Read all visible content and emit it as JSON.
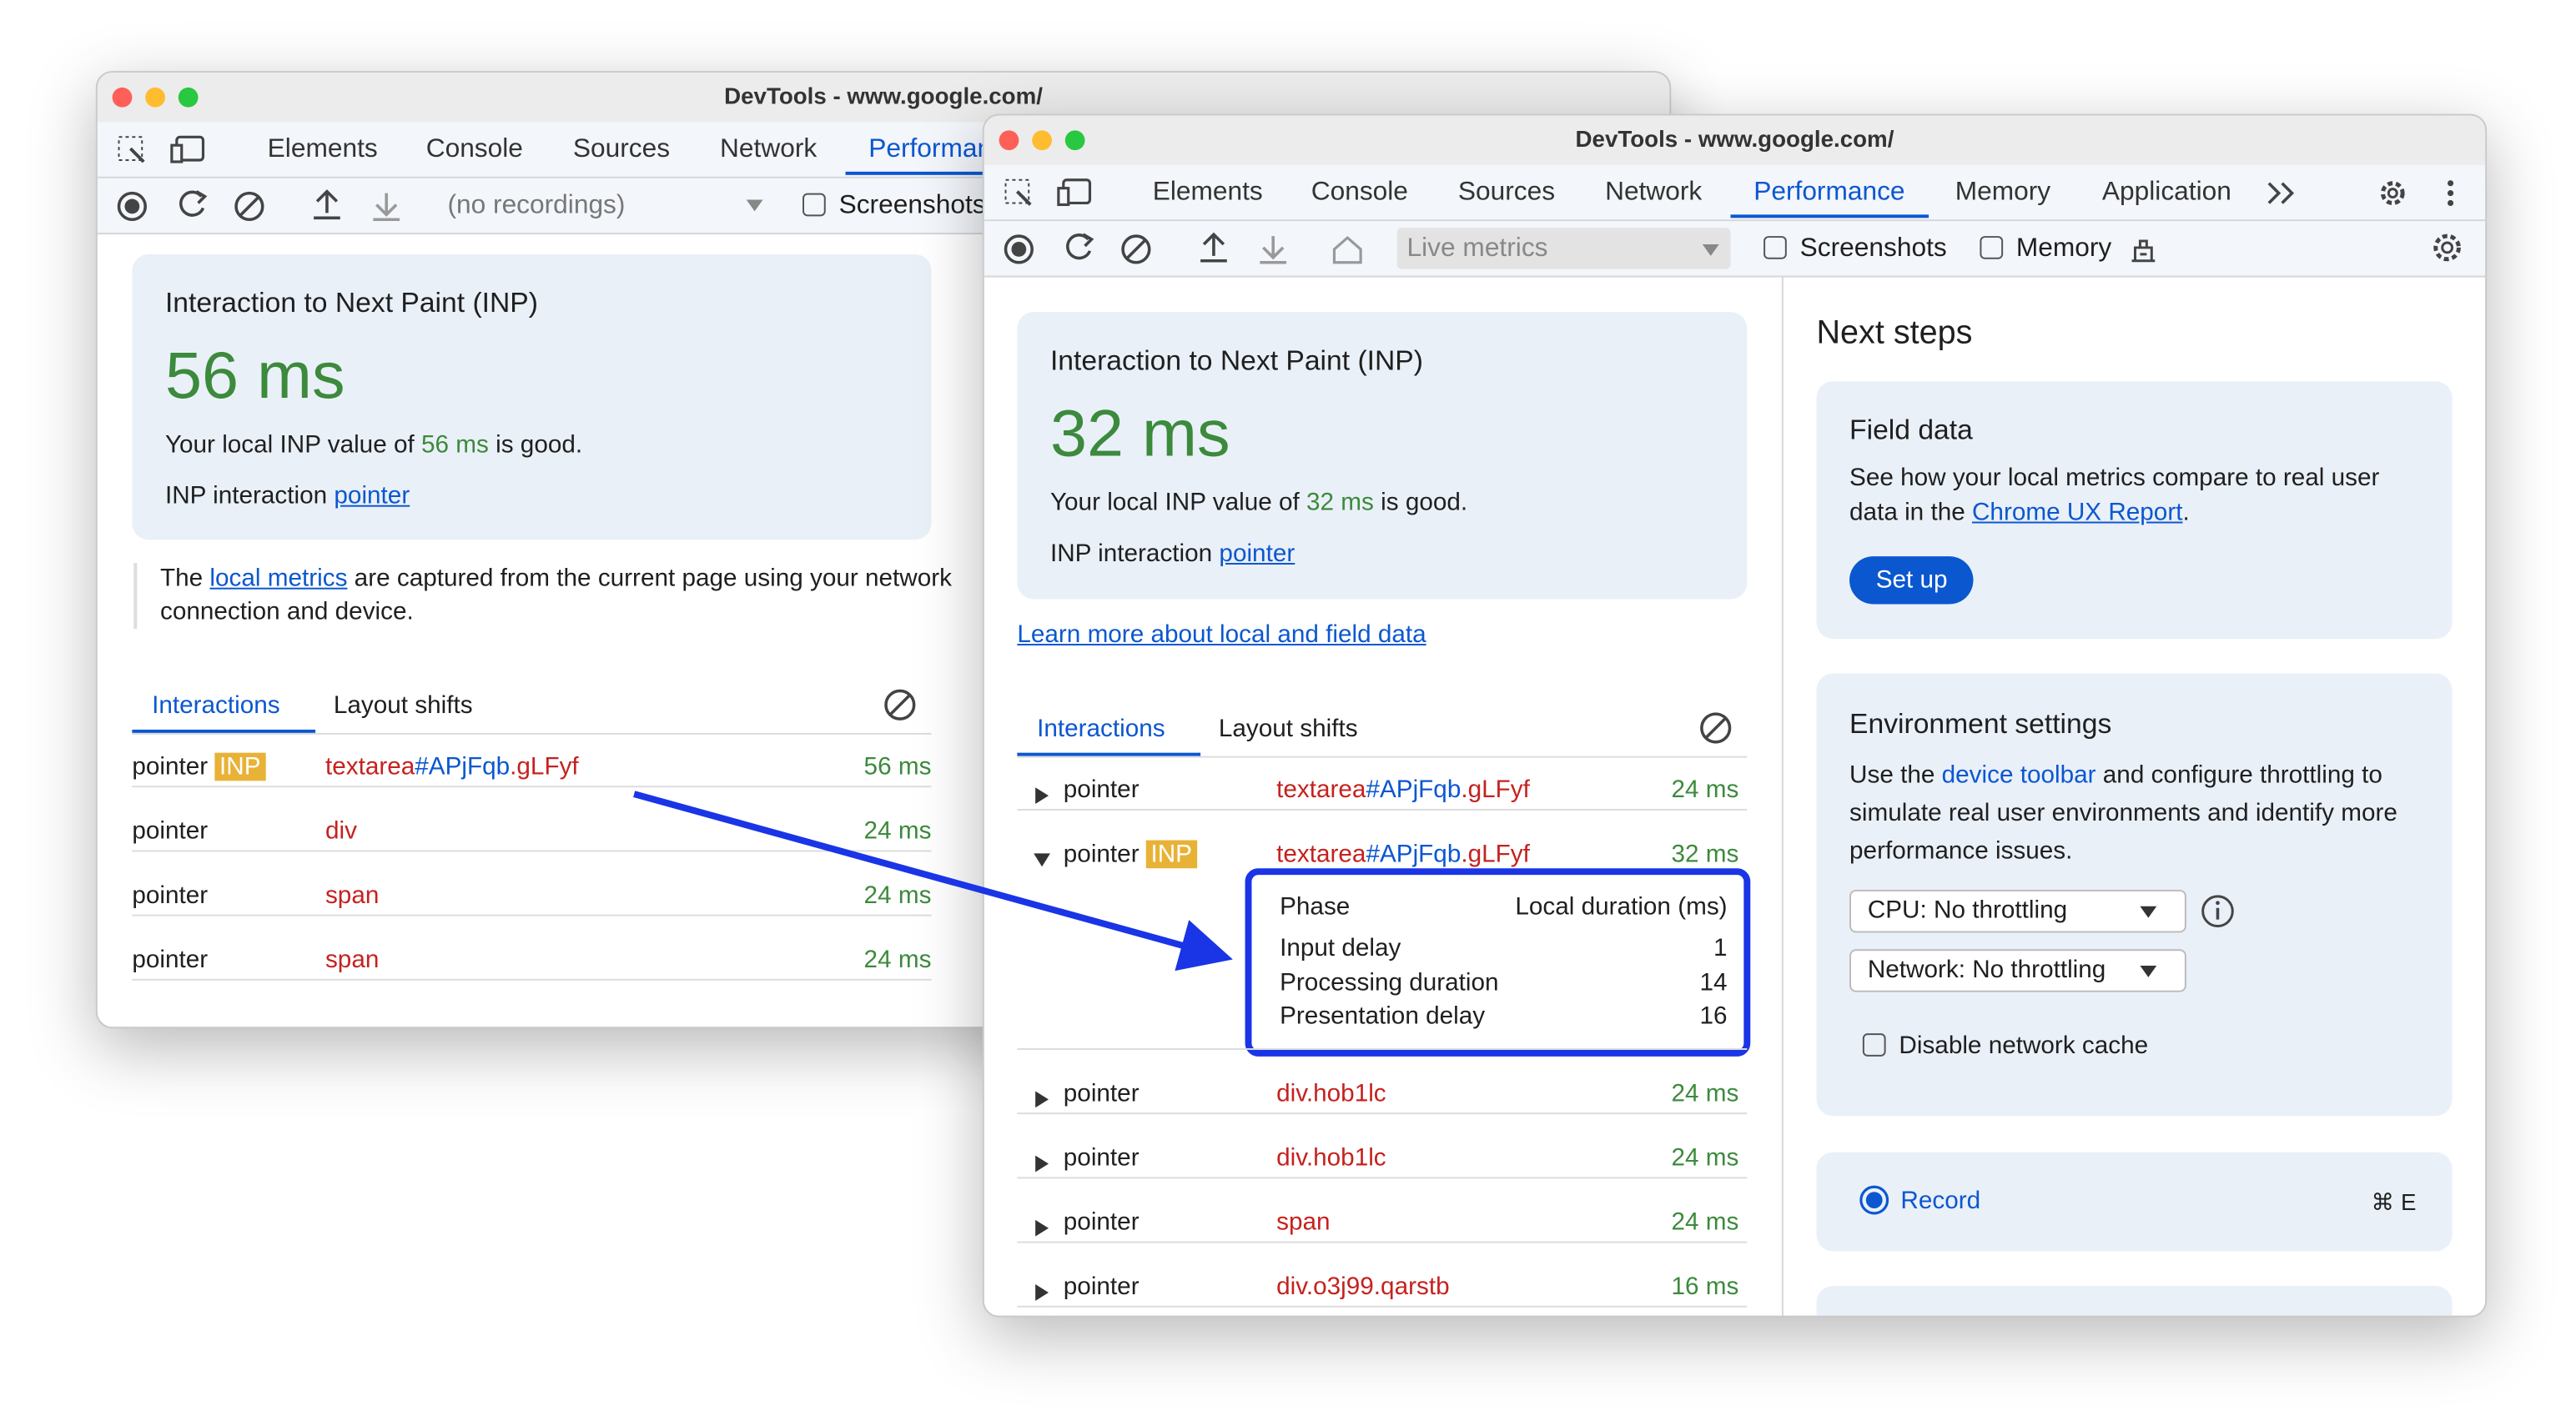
{
  "back_window": {
    "title": "DevTools - www.google.com/",
    "tabs": [
      "Elements",
      "Console",
      "Sources",
      "Network",
      "Performance"
    ],
    "active_tab": 4,
    "recordings": "(no recordings)",
    "checkboxes": [
      "Screenshots"
    ],
    "inp_card": {
      "title": "Interaction to Next Paint (INP)",
      "value": "56 ms",
      "desc": [
        "Your local INP value of ",
        "56 ms",
        " is good."
      ],
      "interaction_label": "INP interaction ",
      "interaction_link": "pointer"
    },
    "note": [
      "The ",
      "local metrics",
      " are captured from the current page using your network connection and device."
    ],
    "subtabs": [
      "Interactions",
      "Layout shifts"
    ],
    "rows": [
      {
        "type": "pointer",
        "badge": "INP",
        "selector": [
          "textarea",
          "#APjFqb",
          ".gLFyf"
        ],
        "duration": "56 ms"
      },
      {
        "type": "pointer",
        "selector": [
          "div"
        ],
        "duration": "24 ms"
      },
      {
        "type": "pointer",
        "selector": [
          "span"
        ],
        "duration": "24 ms"
      },
      {
        "type": "pointer",
        "selector": [
          "span"
        ],
        "duration": "24 ms"
      }
    ]
  },
  "front_window": {
    "title": "DevTools - www.google.com/",
    "tabs": [
      "Elements",
      "Console",
      "Sources",
      "Network",
      "Performance",
      "Memory",
      "Application"
    ],
    "active_tab": 4,
    "live_metrics": "Live metrics",
    "checkboxes": [
      "Screenshots",
      "Memory"
    ],
    "inp_card": {
      "title": "Interaction to Next Paint (INP)",
      "value": "32 ms",
      "desc": [
        "Your local INP value of ",
        "32 ms",
        " is good."
      ],
      "interaction_label": "INP interaction ",
      "interaction_link": "pointer"
    },
    "learn_more": "Learn more about local and field data",
    "subtabs": [
      "Interactions",
      "Layout shifts"
    ],
    "rows": [
      {
        "type": "pointer",
        "selector": [
          "textarea",
          "#APjFqb",
          ".gLFyf"
        ],
        "duration": "24 ms"
      },
      {
        "type": "pointer",
        "badge": "INP",
        "selector": [
          "textarea",
          "#APjFqb",
          ".gLFyf"
        ],
        "duration": "32 ms",
        "phases": {
          "header": [
            "Phase",
            "Local duration (ms)"
          ],
          "rows": [
            [
              "Input delay",
              1
            ],
            [
              "Processing duration",
              14
            ],
            [
              "Presentation delay",
              16
            ]
          ]
        }
      },
      {
        "type": "pointer",
        "selector": [
          "div.hob1lc"
        ],
        "duration": "24 ms"
      },
      {
        "type": "pointer",
        "selector": [
          "div.hob1lc"
        ],
        "duration": "24 ms"
      },
      {
        "type": "pointer",
        "selector": [
          "span"
        ],
        "duration": "24 ms"
      },
      {
        "type": "pointer",
        "selector": [
          "div.o3j99.qarstb"
        ],
        "duration": "16 ms"
      }
    ],
    "next_steps": {
      "title": "Next steps",
      "field_data": {
        "title": "Field data",
        "text": [
          "See how your local metrics compare to real user data in the ",
          "Chrome UX Report",
          "."
        ],
        "button": "Set up"
      },
      "environment": {
        "title": "Environment settings",
        "text": [
          "Use the ",
          "device toolbar",
          " and configure throttling to simulate real user environments and identify more performance issues."
        ],
        "cpu": "CPU: No throttling",
        "network": "Network: No throttling",
        "cache": "Disable network cache"
      },
      "record": {
        "label": "Record",
        "shortcut": "⌘ E"
      }
    }
  }
}
